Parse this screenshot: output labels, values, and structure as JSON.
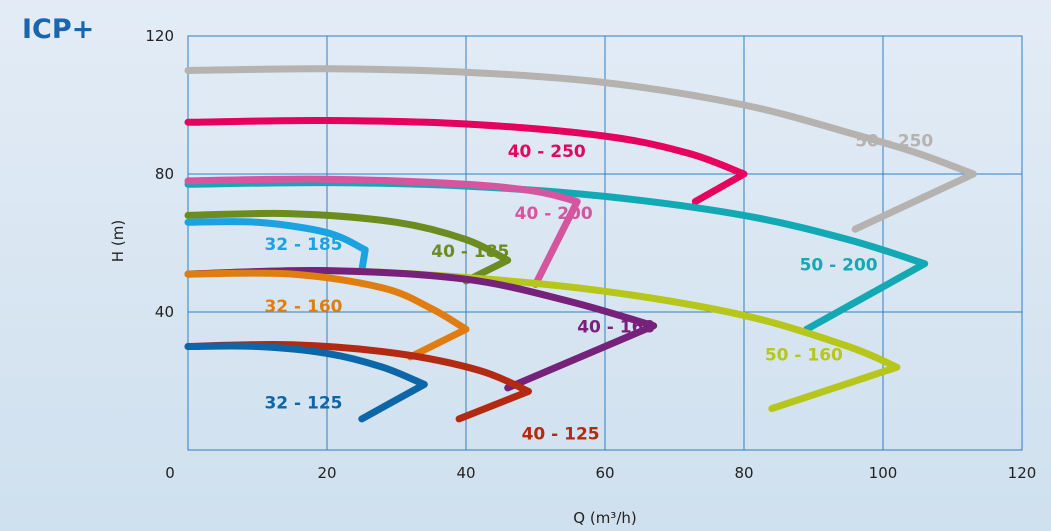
{
  "brand": {
    "title": "ICP+",
    "color": "#1b65ad"
  },
  "chart_data": {
    "type": "line",
    "title": "",
    "xlabel": "Q (m³/h)",
    "ylabel": "H (m)",
    "xlim": [
      0,
      120
    ],
    "ylim": [
      0,
      120
    ],
    "xticks": [
      0,
      20,
      40,
      60,
      80,
      100,
      120
    ],
    "yticks": [
      40,
      80,
      120
    ],
    "grid": true,
    "grid_color": "#2f7fc4",
    "series": [
      {
        "name": "50 - 250",
        "color": "#b5b2b0",
        "x": [
          0,
          20,
          40,
          60,
          80,
          95,
          105,
          113,
          96
        ],
        "y": [
          110,
          110.5,
          109.5,
          106.5,
          100,
          92,
          86,
          80,
          64
        ],
        "label_pos": [
          96,
          88
        ]
      },
      {
        "name": "40 - 250",
        "color": "#e6005d",
        "x": [
          0,
          20,
          40,
          60,
          72,
          80,
          73
        ],
        "y": [
          95,
          95.5,
          94.5,
          91,
          86,
          80,
          72
        ],
        "label_pos": [
          46,
          85
        ]
      },
      {
        "name": "50 - 200",
        "color": "#13a9b4",
        "x": [
          0,
          20,
          40,
          60,
          80,
          95,
          106,
          89
        ],
        "y": [
          77,
          77.5,
          76.5,
          73.5,
          68,
          61,
          54,
          35
        ],
        "label_pos": [
          88,
          52
        ]
      },
      {
        "name": "40 - 200",
        "color": "#d6559f",
        "x": [
          0,
          20,
          40,
          50,
          56,
          50
        ],
        "y": [
          78,
          78.5,
          77,
          75,
          72,
          48
        ],
        "label_pos": [
          47,
          67
        ]
      },
      {
        "name": "40 - 185",
        "color": "#6d8c1f",
        "x": [
          0,
          15,
          30,
          40,
          46,
          40
        ],
        "y": [
          68,
          68.5,
          66,
          61,
          55,
          49
        ],
        "label_pos": [
          35,
          56
        ]
      },
      {
        "name": "32 - 185",
        "color": "#1aa3e0",
        "x": [
          0,
          10,
          20,
          25.5,
          25
        ],
        "y": [
          66,
          66,
          63,
          58,
          52
        ],
        "label_pos": [
          11,
          58
        ]
      },
      {
        "name": "50 - 160",
        "color": "#b6c61a",
        "x": [
          0,
          20,
          40,
          60,
          80,
          95,
          102,
          84
        ],
        "y": [
          51,
          52,
          50,
          46,
          39,
          30,
          24,
          12
        ],
        "label_pos": [
          83,
          26
        ]
      },
      {
        "name": "40 - 160",
        "color": "#76217a",
        "x": [
          0,
          20,
          40,
          55,
          67,
          46
        ],
        "y": [
          51,
          52,
          49.5,
          43,
          36,
          18
        ],
        "label_pos": [
          56,
          34
        ]
      },
      {
        "name": "32 - 160",
        "color": "#e07d10",
        "x": [
          0,
          15,
          28,
          35,
          40,
          32
        ],
        "y": [
          51,
          51,
          47,
          41,
          35,
          27
        ],
        "label_pos": [
          11,
          40
        ]
      },
      {
        "name": "40 - 125",
        "color": "#b22a12",
        "x": [
          0,
          15,
          30,
          42,
          49,
          39
        ],
        "y": [
          30,
          30.5,
          28,
          23,
          17,
          9
        ],
        "label_pos": [
          48,
          3
        ]
      },
      {
        "name": "32 - 125",
        "color": "#0d66a8",
        "x": [
          0,
          10,
          20,
          28,
          34,
          25
        ],
        "y": [
          30,
          30,
          28,
          24,
          19,
          9
        ],
        "label_pos": [
          11,
          12
        ]
      }
    ]
  }
}
